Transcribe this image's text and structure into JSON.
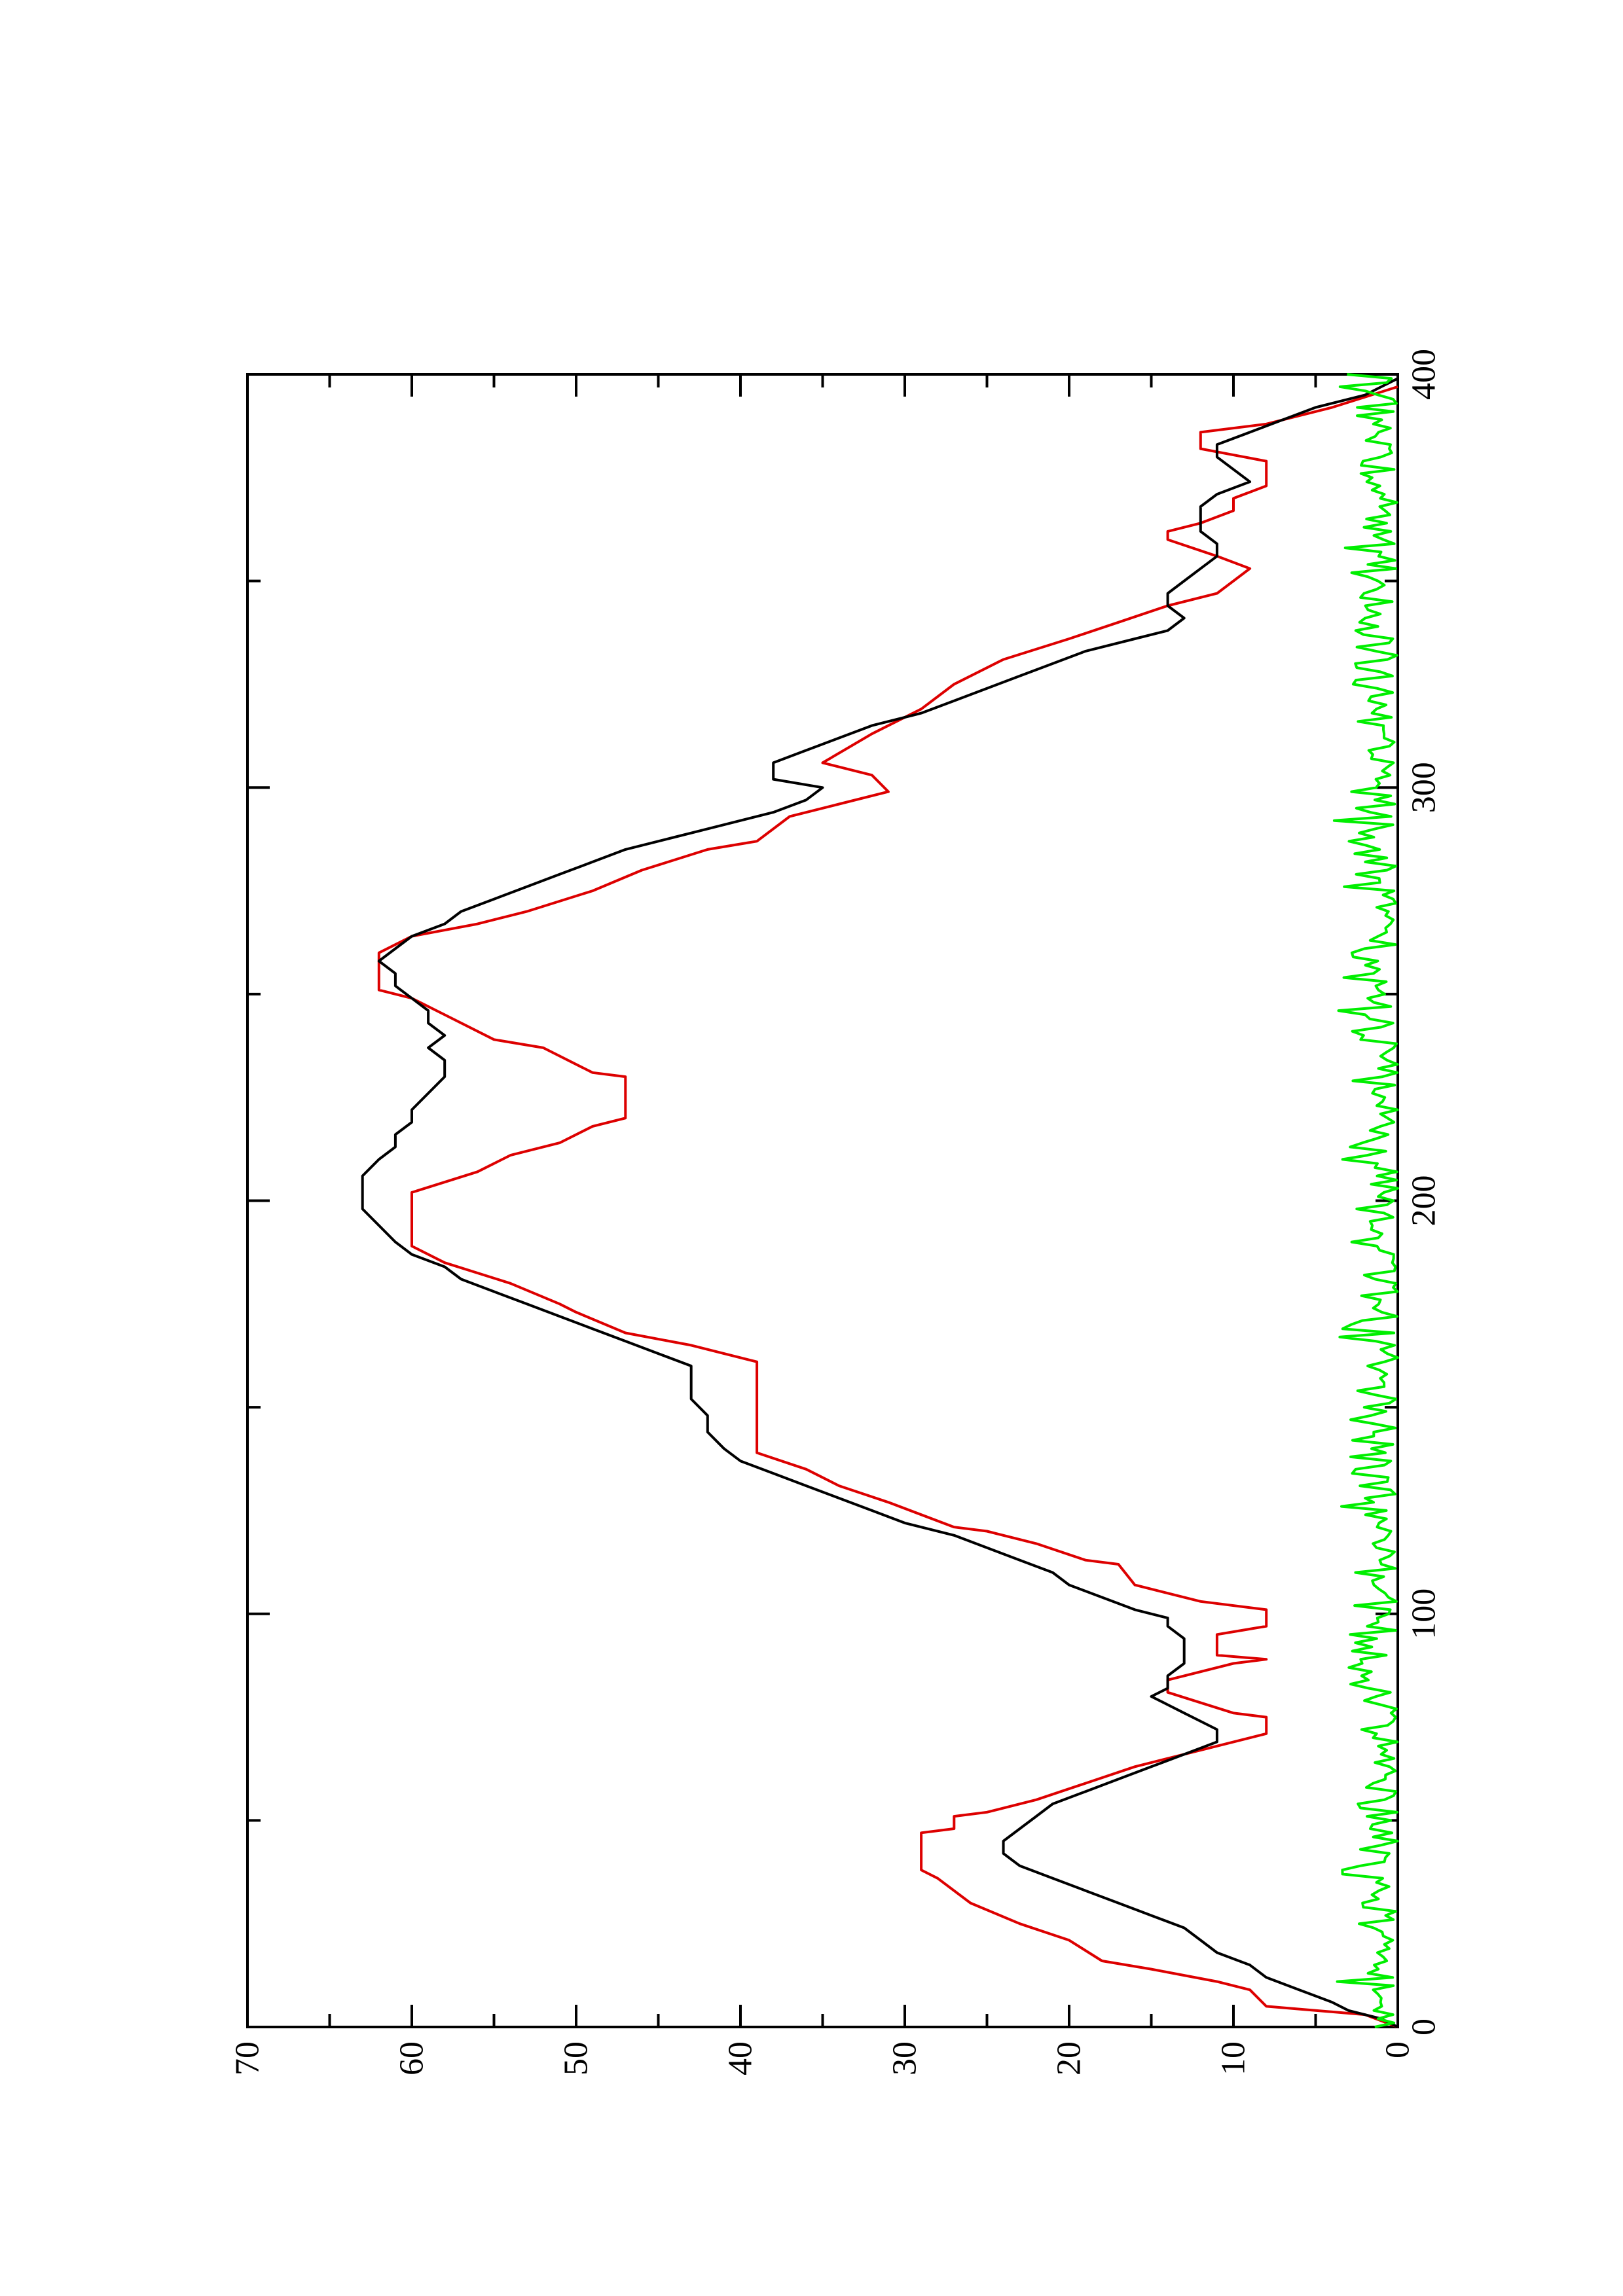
{
  "chart_data": {
    "type": "line",
    "orientation": "rotated-90-counterclockwise",
    "title": "",
    "xlabel": "",
    "ylabel": "",
    "xlim": [
      0,
      400
    ],
    "ylim": [
      0,
      70
    ],
    "x_ticks": [
      0,
      100,
      200,
      300,
      400
    ],
    "x_minor_ticks": [
      50,
      150,
      250,
      350
    ],
    "y_ticks": [
      0,
      10,
      20,
      30,
      40,
      50,
      60,
      70
    ],
    "y_minor_ticks": [
      5,
      15,
      25,
      35,
      45,
      55,
      65
    ],
    "x_tick_labels": [
      "0",
      "100",
      "200",
      "300",
      "400"
    ],
    "y_tick_labels": [
      "0",
      "10",
      "20",
      "30",
      "40",
      "50",
      "60",
      "70"
    ],
    "grid": false,
    "series": [
      {
        "color": "#dd0000",
        "style": "step",
        "points": [
          [
            0,
            0
          ],
          [
            3,
            2
          ],
          [
            5,
            8
          ],
          [
            9,
            9
          ],
          [
            11,
            11
          ],
          [
            14,
            15
          ],
          [
            16,
            18
          ],
          [
            21,
            20
          ],
          [
            25,
            23
          ],
          [
            30,
            26
          ],
          [
            36,
            28
          ],
          [
            38,
            29
          ],
          [
            47,
            29
          ],
          [
            48,
            27
          ],
          [
            51,
            27
          ],
          [
            52,
            25
          ],
          [
            55,
            22
          ],
          [
            59,
            19
          ],
          [
            63,
            16
          ],
          [
            67,
            12
          ],
          [
            71,
            8
          ],
          [
            75,
            8
          ],
          [
            76,
            10
          ],
          [
            81,
            14
          ],
          [
            84,
            14
          ],
          [
            88,
            10
          ],
          [
            89,
            8
          ],
          [
            90,
            11
          ],
          [
            95,
            11
          ],
          [
            97,
            8
          ],
          [
            101,
            8
          ],
          [
            103,
            12
          ],
          [
            107,
            16
          ],
          [
            112,
            17
          ],
          [
            113,
            19
          ],
          [
            117,
            22
          ],
          [
            120,
            25
          ],
          [
            121,
            27
          ],
          [
            127,
            31
          ],
          [
            131,
            34
          ],
          [
            135,
            36
          ],
          [
            139,
            39
          ],
          [
            161,
            39
          ],
          [
            165,
            43
          ],
          [
            168,
            47
          ],
          [
            173,
            50
          ],
          [
            175,
            51
          ],
          [
            180,
            54
          ],
          [
            185,
            58
          ],
          [
            189,
            60
          ],
          [
            202,
            60
          ],
          [
            207,
            56
          ],
          [
            211,
            54
          ],
          [
            214,
            51
          ],
          [
            218,
            49
          ],
          [
            220,
            47
          ],
          [
            230,
            47
          ],
          [
            231,
            49
          ],
          [
            237,
            52
          ],
          [
            239,
            55
          ],
          [
            245,
            58
          ],
          [
            249,
            60
          ],
          [
            251,
            62
          ],
          [
            260,
            62
          ],
          [
            264,
            60
          ],
          [
            267,
            56
          ],
          [
            270,
            53
          ],
          [
            275,
            49
          ],
          [
            280,
            46
          ],
          [
            285,
            42
          ],
          [
            287,
            39
          ],
          [
            293,
            37
          ],
          [
            296,
            34
          ],
          [
            299,
            31
          ],
          [
            303,
            32
          ],
          [
            306,
            35
          ],
          [
            313,
            32
          ],
          [
            319,
            29
          ],
          [
            325,
            27
          ],
          [
            331,
            24
          ],
          [
            336,
            20
          ],
          [
            340,
            17
          ],
          [
            344,
            14
          ],
          [
            347,
            11
          ],
          [
            353,
            9
          ],
          [
            356,
            11
          ],
          [
            360,
            14
          ],
          [
            362,
            14
          ],
          [
            364,
            12
          ],
          [
            367,
            10
          ],
          [
            370,
            10
          ],
          [
            373,
            8
          ],
          [
            379,
            8
          ],
          [
            382,
            12
          ],
          [
            386,
            12
          ],
          [
            388,
            8
          ],
          [
            392,
            4
          ],
          [
            397,
            0
          ]
        ]
      },
      {
        "color": "#000000",
        "style": "line",
        "points": [
          [
            0,
            0
          ],
          [
            2,
            1
          ],
          [
            4,
            3
          ],
          [
            6,
            4
          ],
          [
            9,
            6
          ],
          [
            12,
            8
          ],
          [
            15,
            9
          ],
          [
            18,
            11
          ],
          [
            21,
            12
          ],
          [
            24,
            13
          ],
          [
            27,
            15
          ],
          [
            30,
            17
          ],
          [
            33,
            19
          ],
          [
            36,
            21
          ],
          [
            39,
            23
          ],
          [
            42,
            24
          ],
          [
            45,
            24
          ],
          [
            48,
            23
          ],
          [
            51,
            22
          ],
          [
            54,
            21
          ],
          [
            57,
            19
          ],
          [
            60,
            17
          ],
          [
            63,
            15
          ],
          [
            66,
            13
          ],
          [
            69,
            11
          ],
          [
            72,
            11
          ],
          [
            74,
            12
          ],
          [
            76,
            13
          ],
          [
            78,
            14
          ],
          [
            80,
            15
          ],
          [
            82,
            14
          ],
          [
            85,
            14
          ],
          [
            88,
            13
          ],
          [
            91,
            13
          ],
          [
            94,
            13
          ],
          [
            97,
            14
          ],
          [
            99,
            14
          ],
          [
            101,
            16
          ],
          [
            104,
            18
          ],
          [
            107,
            20
          ],
          [
            110,
            21
          ],
          [
            113,
            23
          ],
          [
            116,
            25
          ],
          [
            119,
            27
          ],
          [
            122,
            30
          ],
          [
            125,
            32
          ],
          [
            128,
            34
          ],
          [
            131,
            36
          ],
          [
            134,
            38
          ],
          [
            137,
            40
          ],
          [
            140,
            41
          ],
          [
            144,
            42
          ],
          [
            148,
            42
          ],
          [
            152,
            43
          ],
          [
            156,
            43
          ],
          [
            160,
            43
          ],
          [
            163,
            45
          ],
          [
            166,
            47
          ],
          [
            169,
            49
          ],
          [
            172,
            51
          ],
          [
            175,
            53
          ],
          [
            178,
            55
          ],
          [
            181,
            57
          ],
          [
            184,
            58
          ],
          [
            187,
            60
          ],
          [
            190,
            61
          ],
          [
            194,
            62
          ],
          [
            198,
            63
          ],
          [
            202,
            63
          ],
          [
            206,
            63
          ],
          [
            210,
            62
          ],
          [
            213,
            61
          ],
          [
            216,
            61
          ],
          [
            219,
            60
          ],
          [
            222,
            60
          ],
          [
            226,
            59
          ],
          [
            230,
            58
          ],
          [
            234,
            58
          ],
          [
            237,
            59
          ],
          [
            240,
            58
          ],
          [
            243,
            59
          ],
          [
            246,
            59
          ],
          [
            249,
            60
          ],
          [
            252,
            61
          ],
          [
            255,
            61
          ],
          [
            258,
            62
          ],
          [
            261,
            61
          ],
          [
            264,
            60
          ],
          [
            267,
            58
          ],
          [
            270,
            57
          ],
          [
            273,
            55
          ],
          [
            276,
            53
          ],
          [
            279,
            51
          ],
          [
            282,
            49
          ],
          [
            285,
            47
          ],
          [
            288,
            44
          ],
          [
            291,
            41
          ],
          [
            294,
            38
          ],
          [
            297,
            36
          ],
          [
            300,
            35
          ],
          [
            302,
            38
          ],
          [
            306,
            38
          ],
          [
            309,
            36
          ],
          [
            312,
            34
          ],
          [
            315,
            32
          ],
          [
            318,
            29
          ],
          [
            321,
            27
          ],
          [
            324,
            25
          ],
          [
            327,
            23
          ],
          [
            330,
            21
          ],
          [
            333,
            19
          ],
          [
            336,
            16
          ],
          [
            338,
            14
          ],
          [
            341,
            13
          ],
          [
            344,
            14
          ],
          [
            347,
            14
          ],
          [
            350,
            13
          ],
          [
            353,
            12
          ],
          [
            356,
            11
          ],
          [
            359,
            11
          ],
          [
            362,
            12
          ],
          [
            365,
            12
          ],
          [
            368,
            12
          ],
          [
            371,
            11
          ],
          [
            374,
            9
          ],
          [
            377,
            10
          ],
          [
            380,
            11
          ],
          [
            383,
            11
          ],
          [
            386,
            9
          ],
          [
            389,
            7
          ],
          [
            392,
            5
          ],
          [
            395,
            2
          ],
          [
            397,
            1
          ],
          [
            399,
            0
          ]
        ]
      },
      {
        "color": "#00ee00",
        "style": "noise",
        "generator": "bounded-oscillation",
        "x_range": [
          0,
          400
        ],
        "step": 1,
        "y_min": 0,
        "y_max": 4
      }
    ]
  }
}
